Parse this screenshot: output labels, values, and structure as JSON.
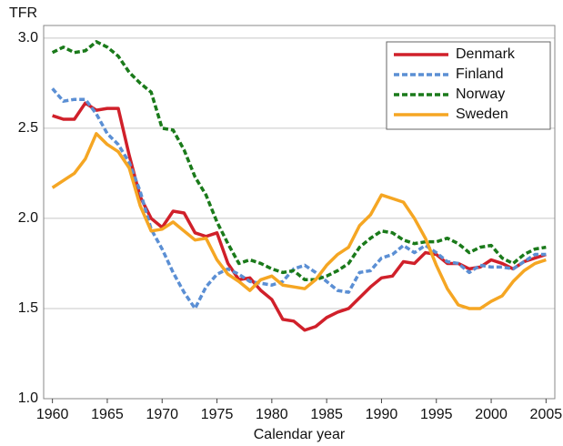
{
  "chart_data": {
    "type": "line",
    "y_label": "TFR",
    "x_label": "Calendar year",
    "x": [
      1960,
      1961,
      1962,
      1963,
      1964,
      1965,
      1966,
      1967,
      1968,
      1969,
      1970,
      1971,
      1972,
      1973,
      1974,
      1975,
      1976,
      1977,
      1978,
      1979,
      1980,
      1981,
      1982,
      1983,
      1984,
      1985,
      1986,
      1987,
      1988,
      1989,
      1990,
      1991,
      1992,
      1993,
      1994,
      1995,
      1996,
      1997,
      1998,
      1999,
      2000,
      2001,
      2002,
      2003,
      2004,
      2005
    ],
    "series": [
      {
        "name": "Denmark",
        "color": "#d0202a",
        "dashed": false,
        "values": [
          2.57,
          2.55,
          2.55,
          2.64,
          2.6,
          2.61,
          2.61,
          2.35,
          2.12,
          2.0,
          1.95,
          2.04,
          2.03,
          1.92,
          1.9,
          1.92,
          1.75,
          1.66,
          1.67,
          1.6,
          1.55,
          1.44,
          1.43,
          1.38,
          1.4,
          1.45,
          1.48,
          1.5,
          1.56,
          1.62,
          1.67,
          1.68,
          1.76,
          1.75,
          1.81,
          1.8,
          1.75,
          1.75,
          1.72,
          1.73,
          1.77,
          1.75,
          1.72,
          1.76,
          1.78,
          1.8
        ]
      },
      {
        "name": "Finland",
        "color": "#5b8fd4",
        "dashed": true,
        "values": [
          2.72,
          2.65,
          2.66,
          2.66,
          2.58,
          2.47,
          2.41,
          2.31,
          2.15,
          1.94,
          1.83,
          1.7,
          1.59,
          1.5,
          1.62,
          1.69,
          1.72,
          1.69,
          1.65,
          1.64,
          1.63,
          1.65,
          1.72,
          1.74,
          1.7,
          1.65,
          1.6,
          1.59,
          1.7,
          1.71,
          1.78,
          1.8,
          1.85,
          1.81,
          1.85,
          1.81,
          1.76,
          1.75,
          1.7,
          1.74,
          1.73,
          1.73,
          1.72,
          1.76,
          1.8,
          1.8
        ]
      },
      {
        "name": "Norway",
        "color": "#1a7a1a",
        "dashed": true,
        "values": [
          2.92,
          2.95,
          2.92,
          2.93,
          2.98,
          2.95,
          2.9,
          2.81,
          2.75,
          2.7,
          2.5,
          2.49,
          2.38,
          2.23,
          2.13,
          1.98,
          1.86,
          1.75,
          1.77,
          1.75,
          1.72,
          1.7,
          1.71,
          1.66,
          1.66,
          1.68,
          1.71,
          1.75,
          1.84,
          1.89,
          1.93,
          1.92,
          1.88,
          1.86,
          1.87,
          1.87,
          1.89,
          1.86,
          1.81,
          1.84,
          1.85,
          1.78,
          1.75,
          1.8,
          1.83,
          1.84
        ]
      },
      {
        "name": "Sweden",
        "color": "#f5a623",
        "dashed": false,
        "values": [
          2.17,
          2.21,
          2.25,
          2.33,
          2.47,
          2.41,
          2.37,
          2.28,
          2.07,
          1.93,
          1.94,
          1.98,
          1.93,
          1.88,
          1.89,
          1.77,
          1.69,
          1.65,
          1.6,
          1.66,
          1.68,
          1.63,
          1.62,
          1.61,
          1.66,
          1.74,
          1.8,
          1.84,
          1.96,
          2.02,
          2.13,
          2.11,
          2.09,
          2.0,
          1.89,
          1.74,
          1.61,
          1.52,
          1.5,
          1.5,
          1.54,
          1.57,
          1.65,
          1.71,
          1.75,
          1.77
        ]
      }
    ],
    "xlim": [
      1959.2,
      2005.8
    ],
    "xticks": [
      1960,
      1965,
      1970,
      1975,
      1980,
      1985,
      1990,
      1995,
      2000,
      2005
    ],
    "ylim": [
      1.0,
      3.07
    ],
    "yticks": [
      {
        "value": 1.0,
        "label": "1.0"
      },
      {
        "value": 1.5,
        "label": "1.5"
      },
      {
        "value": 2.0,
        "label": "2.0"
      },
      {
        "value": 2.5,
        "label": "2.5"
      },
      {
        "value": 3.0,
        "label": "3.0"
      }
    ],
    "grid": true,
    "legend": "top-right"
  }
}
